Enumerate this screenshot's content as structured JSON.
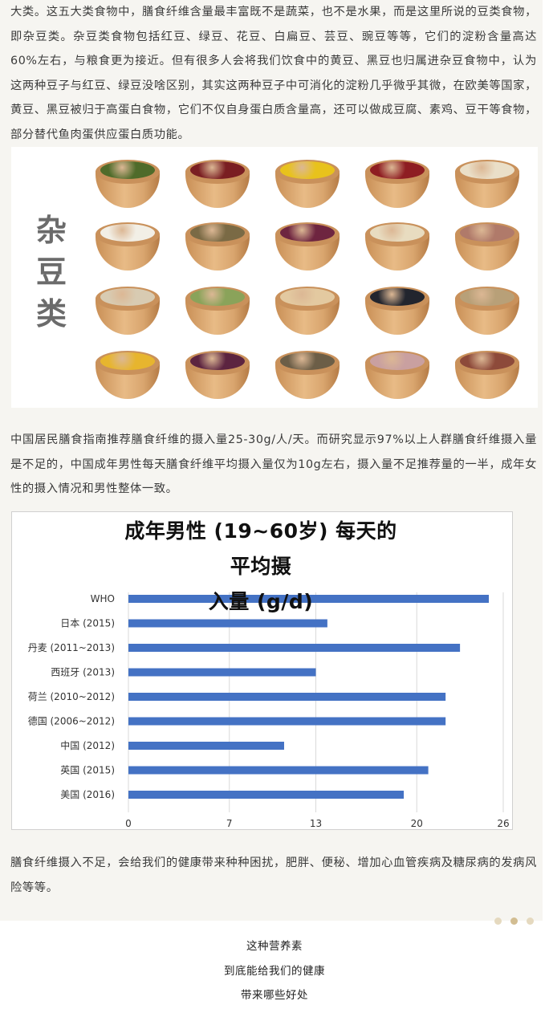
{
  "paragraphs": {
    "p1": "大类。这五大类食物中，膳食纤维含量最丰富既不是蔬菜，也不是水果，而是这里所说的豆类食物，即杂豆类。杂豆类食物包括红豆、绿豆、花豆、白扁豆、芸豆、豌豆等等，它们的淀粉含量高达60%左右，与粮食更为接近。但有很多人会将我们饮食中的黄豆、黑豆也归属进杂豆食物中，认为这两种豆子与红豆、绿豆没啥区别，其实这两种豆子中可消化的淀粉几乎微乎其微，在欧美等国家，黄豆、黑豆被归于高蛋白食物，它们不仅自身蛋白质含量高，还可以做成豆腐、素鸡、豆干等食物，部分替代鱼肉蛋供应蛋白质功能。",
    "p2": "中国居民膳食指南推荐膳食纤维的摄入量25-30g/人/天。而研究显示97%以上人群膳食纤维摄入量是不足的，中国成年男性每天膳食纤维平均摄入量仅为10g左右，摄入量不足推荐量的一半，成年女性的摄入情况和男性整体一致。",
    "p3": "膳食纤维摄入不足，会给我们的健康带来种种困扰，肥胖、便秘、增加心血管疾病及糖尿病的发病风险等等。"
  },
  "beans_image": {
    "title_chars": [
      "杂",
      "豆",
      "类"
    ],
    "bowls": [
      {
        "row": 0,
        "col": 0,
        "color": "#4f6b2a"
      },
      {
        "row": 0,
        "col": 1,
        "color": "#7a1e22"
      },
      {
        "row": 0,
        "col": 2,
        "color": "#e8c21c"
      },
      {
        "row": 0,
        "col": 3,
        "color": "#8e1d22"
      },
      {
        "row": 0,
        "col": 4,
        "color": "#eadfc8"
      },
      {
        "row": 1,
        "col": 0,
        "color": "#f2efe6"
      },
      {
        "row": 1,
        "col": 1,
        "color": "#7a6a45"
      },
      {
        "row": 1,
        "col": 2,
        "color": "#6e2540"
      },
      {
        "row": 1,
        "col": 3,
        "color": "#e8dcc0"
      },
      {
        "row": 1,
        "col": 4,
        "color": "#b07a6a"
      },
      {
        "row": 2,
        "col": 0,
        "color": "#d8cbb2"
      },
      {
        "row": 2,
        "col": 1,
        "color": "#8aa35a"
      },
      {
        "row": 2,
        "col": 2,
        "color": "#e3c9a0"
      },
      {
        "row": 2,
        "col": 3,
        "color": "#22252e"
      },
      {
        "row": 2,
        "col": 4,
        "color": "#b8a078"
      },
      {
        "row": 3,
        "col": 0,
        "color": "#e7b52e"
      },
      {
        "row": 3,
        "col": 1,
        "color": "#5c2440"
      },
      {
        "row": 3,
        "col": 2,
        "color": "#6c5e47"
      },
      {
        "row": 3,
        "col": 3,
        "color": "#c9a0a0"
      },
      {
        "row": 3,
        "col": 4,
        "color": "#8d4a3a"
      }
    ]
  },
  "chart_data": {
    "type": "bar",
    "orientation": "horizontal",
    "title_line1": "成年男性 (19~60岁) 每天的平均摄",
    "title_line2": "入量 (g/d)",
    "categories": [
      "WHO",
      "日本 (2015)",
      "丹麦 (2011~2013)",
      "西班牙 (2013)",
      "荷兰 (2010~2012)",
      "德国 (2006~2012)",
      "中国 (2012)",
      "英国 (2015)",
      "美国 (2016)"
    ],
    "values": [
      25,
      13.8,
      23,
      13,
      22,
      22,
      10.8,
      20.8,
      19.1
    ],
    "x_ticks": [
      "0",
      "7",
      "13",
      "20",
      "26"
    ],
    "xlim": [
      0,
      26
    ],
    "bar_color": "#4472c4",
    "grid": true
  },
  "pagination": {
    "dot_colors": [
      "#e5d9bf",
      "#d2bd92",
      "#e5d9bf"
    ]
  },
  "outro": {
    "line1": "这种营养素",
    "line2": "到底能给我们的健康",
    "line3": "带来哪些好处"
  }
}
